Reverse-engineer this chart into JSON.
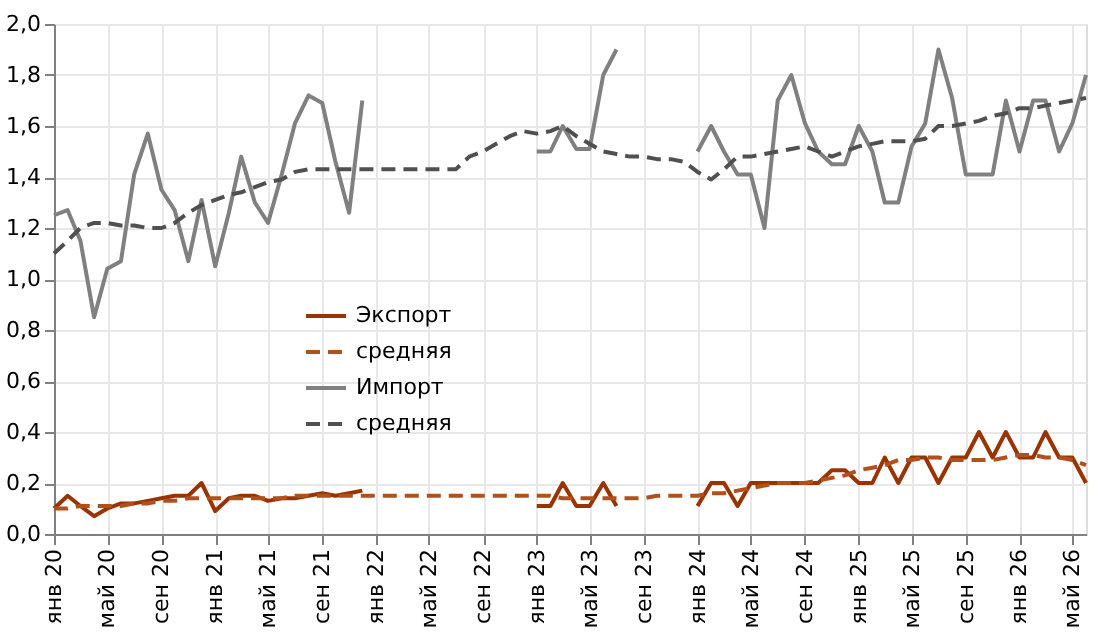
{
  "chart_data": {
    "type": "line",
    "x": [
      "2020-01",
      "2020-02",
      "2020-03",
      "2020-04",
      "2020-05",
      "2020-06",
      "2020-07",
      "2020-08",
      "2020-09",
      "2020-10",
      "2020-11",
      "2020-12",
      "2021-01",
      "2021-02",
      "2021-03",
      "2021-04",
      "2021-05",
      "2021-06",
      "2021-07",
      "2021-08",
      "2021-09",
      "2021-10",
      "2021-11",
      "2021-12",
      "2022-01",
      "2022-02",
      "2022-03",
      "2022-04",
      "2022-05",
      "2022-06",
      "2022-07",
      "2022-08",
      "2022-09",
      "2022-10",
      "2022-11",
      "2022-12",
      "2023-01",
      "2023-02",
      "2023-03",
      "2023-04",
      "2023-05",
      "2023-06",
      "2023-07",
      "2023-08",
      "2023-09",
      "2023-10",
      "2023-11",
      "2023-12",
      "2024-01",
      "2024-02",
      "2024-03",
      "2024-04",
      "2024-05",
      "2024-06",
      "2024-07",
      "2024-08",
      "2024-09",
      "2024-10",
      "2024-11",
      "2024-12",
      "2025-01",
      "2025-02",
      "2025-03",
      "2025-04",
      "2025-05",
      "2025-06",
      "2025-07",
      "2025-08",
      "2025-09",
      "2025-10",
      "2025-11",
      "2025-12",
      "2026-01",
      "2026-02",
      "2026-03",
      "2026-04",
      "2026-05",
      "2026-06"
    ],
    "series": [
      {
        "name": "Экспорт",
        "color": "#993300",
        "line_style": "solid",
        "values": [
          0.1,
          0.15,
          0.11,
          0.07,
          0.1,
          0.12,
          0.12,
          0.13,
          0.14,
          0.15,
          0.15,
          0.2,
          0.09,
          0.14,
          0.15,
          0.15,
          0.13,
          0.14,
          0.14,
          0.15,
          0.16,
          0.15,
          0.16,
          0.17,
          null,
          null,
          null,
          null,
          null,
          null,
          null,
          null,
          null,
          null,
          null,
          null,
          0.11,
          0.11,
          0.2,
          0.11,
          0.11,
          0.2,
          0.11,
          null,
          null,
          null,
          null,
          null,
          0.11,
          0.2,
          0.2,
          0.11,
          0.2,
          0.2,
          0.2,
          0.2,
          0.2,
          0.2,
          0.25,
          0.25,
          0.2,
          0.2,
          0.3,
          0.2,
          0.3,
          0.3,
          0.2,
          0.3,
          0.3,
          0.4,
          0.3,
          0.4,
          0.3,
          0.3,
          0.4,
          0.3,
          0.3,
          0.2
        ]
      },
      {
        "name": "средняя",
        "color": "#b0501a",
        "line_style": "dashed",
        "values": [
          0.1,
          0.1,
          0.11,
          0.11,
          0.11,
          0.11,
          0.12,
          0.12,
          0.13,
          0.13,
          0.14,
          0.14,
          0.14,
          0.14,
          0.14,
          0.14,
          0.14,
          0.14,
          0.15,
          0.15,
          0.15,
          0.15,
          0.15,
          0.15,
          0.15,
          0.15,
          0.15,
          0.15,
          0.15,
          0.15,
          0.15,
          0.15,
          0.15,
          0.15,
          0.15,
          0.15,
          0.15,
          0.15,
          0.14,
          0.14,
          0.14,
          0.14,
          0.14,
          0.14,
          0.14,
          0.15,
          0.15,
          0.15,
          0.15,
          0.16,
          0.16,
          0.17,
          0.18,
          0.19,
          0.2,
          0.2,
          0.2,
          0.21,
          0.22,
          0.23,
          0.25,
          0.26,
          0.27,
          0.29,
          0.29,
          0.3,
          0.3,
          0.29,
          0.29,
          0.29,
          0.29,
          0.3,
          0.31,
          0.31,
          0.3,
          0.3,
          0.29,
          0.27
        ]
      },
      {
        "name": "Импорт",
        "color": "#808080",
        "line_style": "solid",
        "values": [
          1.25,
          1.27,
          1.15,
          0.85,
          1.04,
          1.07,
          1.41,
          1.57,
          1.35,
          1.27,
          1.07,
          1.31,
          1.05,
          1.26,
          1.48,
          1.3,
          1.22,
          1.41,
          1.61,
          1.72,
          1.69,
          1.46,
          1.26,
          1.7,
          null,
          null,
          null,
          null,
          null,
          null,
          null,
          null,
          null,
          null,
          null,
          null,
          1.5,
          1.5,
          1.6,
          1.51,
          1.51,
          1.8,
          1.9,
          null,
          null,
          null,
          null,
          null,
          1.5,
          1.6,
          1.5,
          1.41,
          1.41,
          1.2,
          1.7,
          1.8,
          1.61,
          1.5,
          1.45,
          1.45,
          1.6,
          1.5,
          1.3,
          1.3,
          1.52,
          1.61,
          1.9,
          1.71,
          1.41,
          1.41,
          1.41,
          1.7,
          1.5,
          1.7,
          1.7,
          1.5,
          1.61,
          1.8
        ]
      },
      {
        "name": "средняя",
        "color": "#505050",
        "line_style": "dashed",
        "values": [
          1.1,
          1.15,
          1.2,
          1.22,
          1.22,
          1.21,
          1.21,
          1.2,
          1.2,
          1.22,
          1.26,
          1.29,
          1.31,
          1.33,
          1.34,
          1.36,
          1.38,
          1.39,
          1.42,
          1.43,
          1.43,
          1.43,
          1.43,
          1.43,
          1.43,
          1.43,
          1.43,
          1.43,
          1.43,
          1.43,
          1.43,
          1.48,
          1.5,
          1.53,
          1.56,
          1.58,
          1.57,
          1.58,
          1.6,
          1.56,
          1.53,
          1.5,
          1.49,
          1.48,
          1.48,
          1.47,
          1.47,
          1.46,
          1.42,
          1.39,
          1.43,
          1.48,
          1.48,
          1.49,
          1.5,
          1.51,
          1.52,
          1.5,
          1.48,
          1.5,
          1.52,
          1.53,
          1.54,
          1.54,
          1.54,
          1.55,
          1.6,
          1.6,
          1.61,
          1.62,
          1.64,
          1.65,
          1.67,
          1.67,
          1.68,
          1.69,
          1.7,
          1.71
        ]
      }
    ],
    "xlim": [
      "2020-01",
      "2026-06"
    ],
    "xticks": [
      {
        "value": "2020-01",
        "label": "янв 20"
      },
      {
        "value": "2020-05",
        "label": "май 20"
      },
      {
        "value": "2020-09",
        "label": "сен 20"
      },
      {
        "value": "2021-01",
        "label": "янв 21"
      },
      {
        "value": "2021-05",
        "label": "май 21"
      },
      {
        "value": "2021-09",
        "label": "сен 21"
      },
      {
        "value": "2022-01",
        "label": "янв 22"
      },
      {
        "value": "2022-05",
        "label": "май 22"
      },
      {
        "value": "2022-09",
        "label": "сен 22"
      },
      {
        "value": "2023-01",
        "label": "янв 23"
      },
      {
        "value": "2023-05",
        "label": "май 23"
      },
      {
        "value": "2023-09",
        "label": "сен 23"
      },
      {
        "value": "2024-01",
        "label": "янв 24"
      },
      {
        "value": "2024-05",
        "label": "май 24"
      },
      {
        "value": "2024-09",
        "label": "сен 24"
      },
      {
        "value": "2025-01",
        "label": "янв 25"
      },
      {
        "value": "2025-05",
        "label": "май 25"
      },
      {
        "value": "2025-09",
        "label": "сен 25"
      },
      {
        "value": "2026-01",
        "label": "янв 26"
      },
      {
        "value": "2026-05",
        "label": "май 26"
      }
    ],
    "ylim": [
      0,
      2.0
    ],
    "yticks": [
      {
        "value": 0,
        "label": "0,0"
      },
      {
        "value": 0.2,
        "label": "0,2"
      },
      {
        "value": 0.4,
        "label": "0,4"
      },
      {
        "value": 0.6,
        "label": "0,6"
      },
      {
        "value": 0.8,
        "label": "0,8"
      },
      {
        "value": 1.0,
        "label": "1,0"
      },
      {
        "value": 1.2,
        "label": "1,2"
      },
      {
        "value": 1.4,
        "label": "1,4"
      },
      {
        "value": 1.6,
        "label": "1,6"
      },
      {
        "value": 1.8,
        "label": "1,8"
      },
      {
        "value": 2.0,
        "label": "2,0"
      }
    ],
    "grid": true,
    "legend": "center",
    "marker": "none"
  }
}
